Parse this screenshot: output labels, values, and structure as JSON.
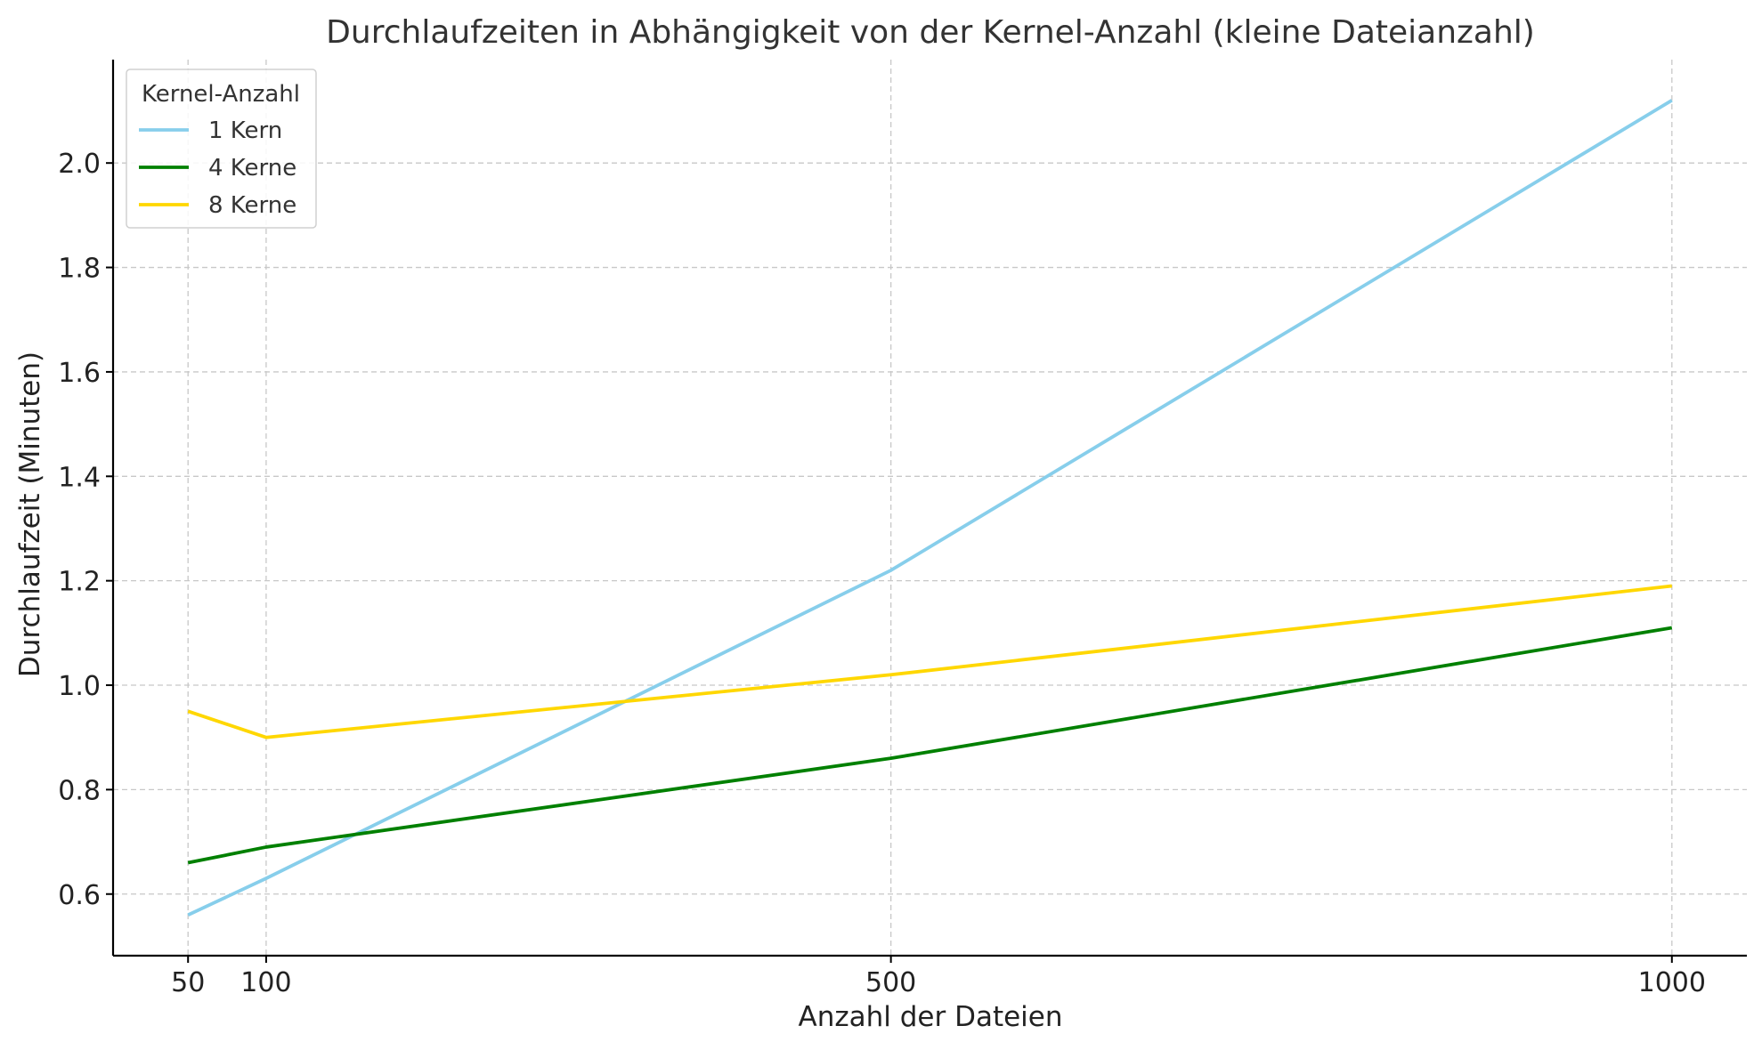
{
  "chart_data": {
    "type": "line",
    "title": "Durchlaufzeiten in Abhängigkeit von der Kernel-Anzahl (kleine Dateianzahl)",
    "xlabel": "Anzahl der Dateien",
    "ylabel": "Durchlaufzeit (Minuten)",
    "x": [
      50,
      100,
      500,
      1000
    ],
    "x_ticks": [
      50,
      100,
      500,
      1000
    ],
    "y_ticks": [
      0.6,
      0.8,
      1.0,
      1.2,
      1.4,
      1.6,
      1.8,
      2.0
    ],
    "xlim": [
      2,
      1048
    ],
    "ylim": [
      0.482,
      2.198
    ],
    "grid": true,
    "legend": {
      "title": "Kernel-Anzahl",
      "placement": "top-left"
    },
    "series": [
      {
        "name": "1 Kern",
        "color": "#87CEEB",
        "values": [
          0.56,
          0.63,
          1.22,
          2.12
        ]
      },
      {
        "name": "4 Kerne",
        "color": "#008000",
        "values": [
          0.66,
          0.69,
          0.86,
          1.11
        ]
      },
      {
        "name": "8 Kerne",
        "color": "#FFD700",
        "values": [
          0.95,
          0.9,
          1.02,
          1.19
        ]
      }
    ]
  }
}
